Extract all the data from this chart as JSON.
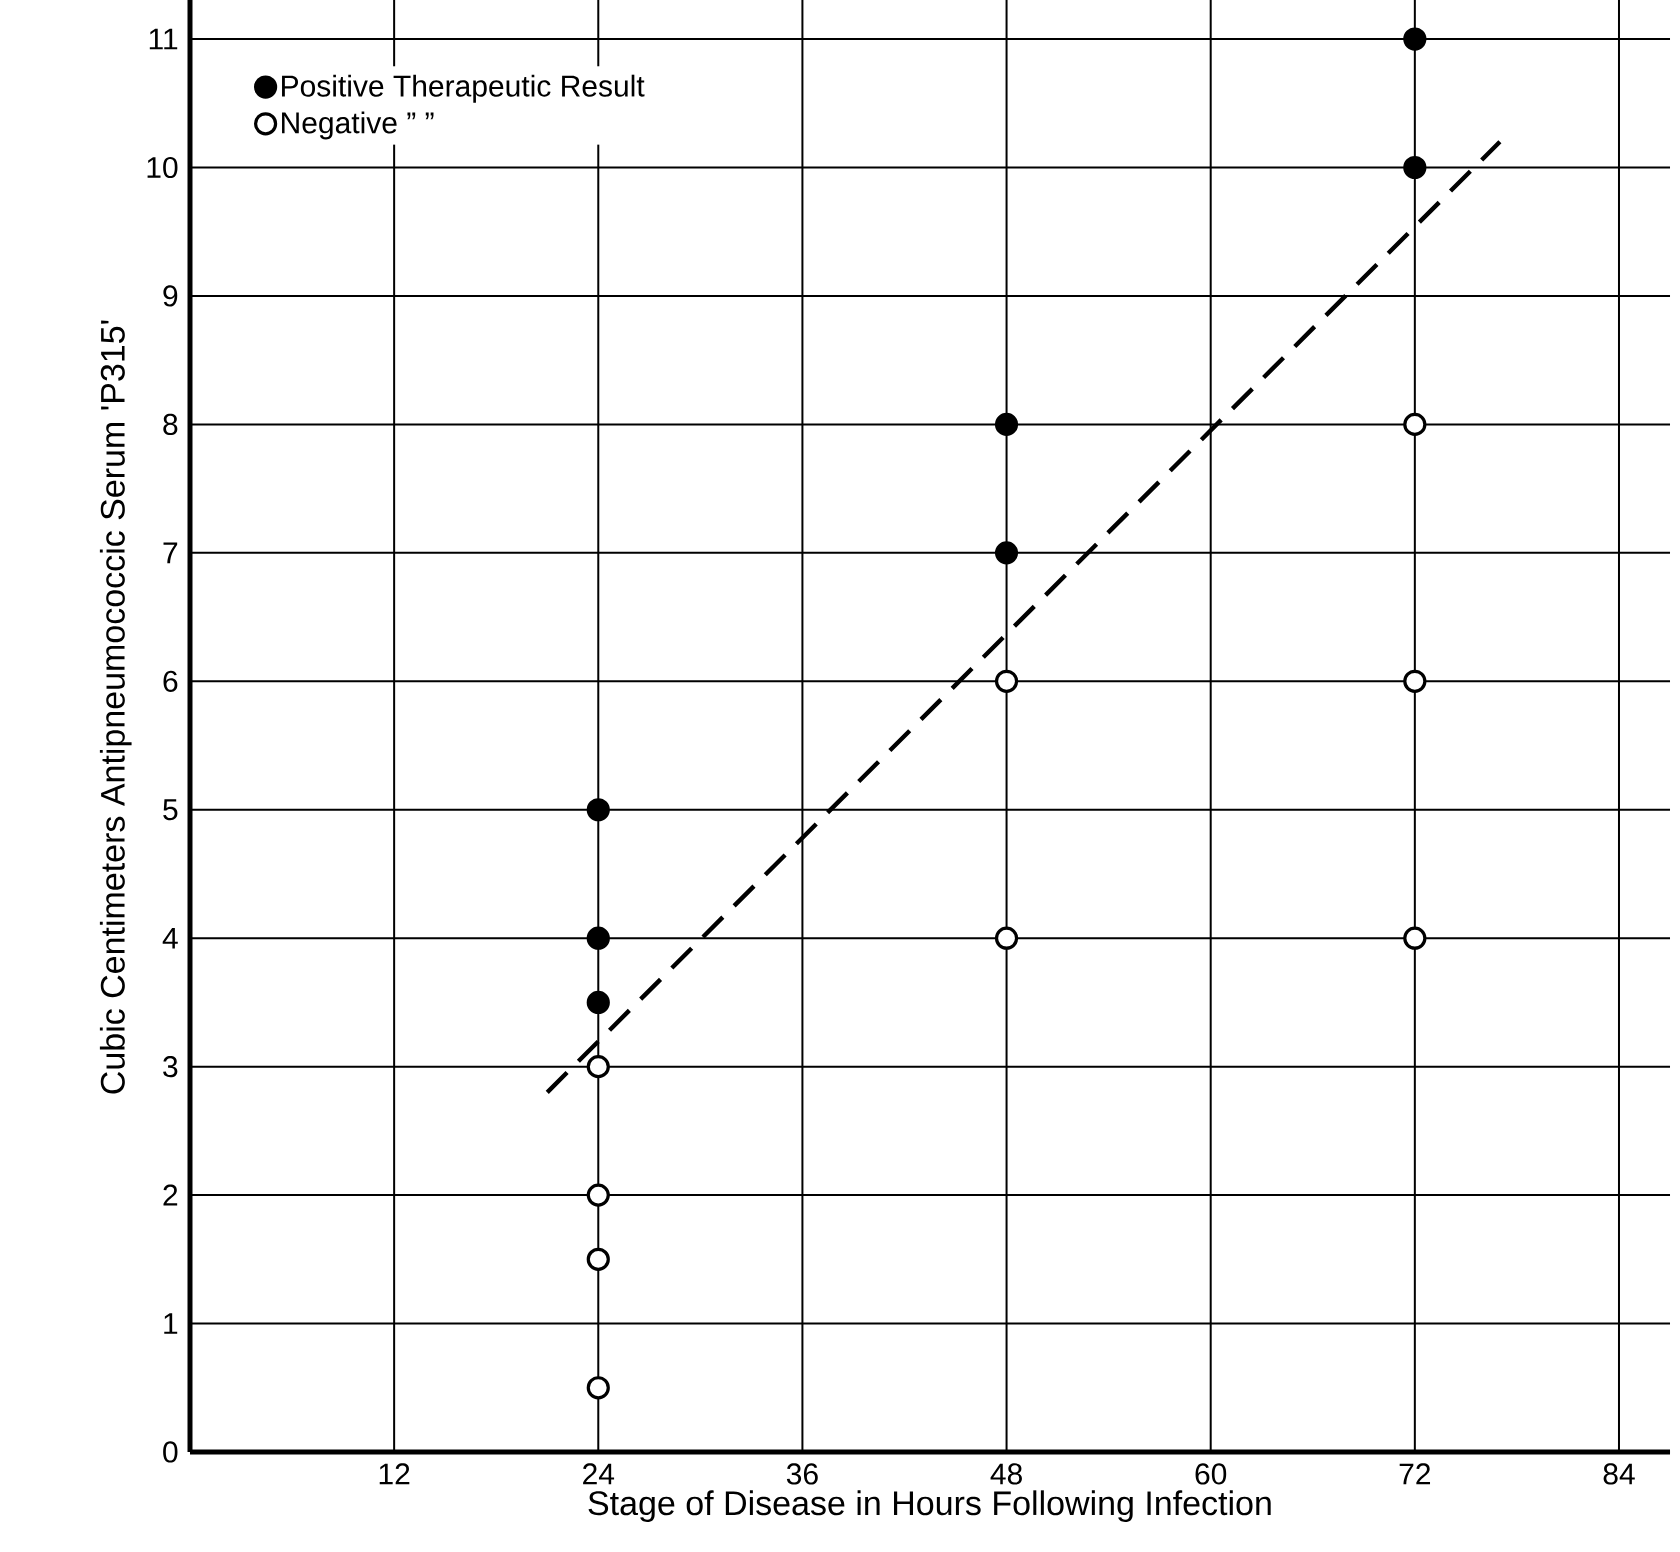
{
  "chart_data": {
    "type": "scatter",
    "xlabel": "Stage of Disease in Hours Following Infection",
    "ylabel": "Cubic Centimeters Antipneumococcic Serum 'P315'",
    "xlim": [
      0,
      87
    ],
    "ylim": [
      0,
      11.6
    ],
    "xticks": [
      12,
      24,
      36,
      48,
      60,
      72,
      84
    ],
    "yticks": [
      0,
      1,
      2,
      3,
      4,
      5,
      6,
      7,
      8,
      9,
      10,
      11
    ],
    "grid": true,
    "legend": "top left",
    "series": [
      {
        "name": "Positive Therapeutic Result",
        "color": "#000000",
        "marker": "circle",
        "x": [
          24,
          24,
          24,
          48,
          48,
          72,
          72
        ],
        "values": [
          5,
          4,
          3.5,
          8,
          7,
          11,
          10
        ]
      },
      {
        "name": "Negative ” ”",
        "color": "#ffffff",
        "marker": "circle",
        "x": [
          24,
          24,
          24,
          24,
          48,
          48,
          72,
          72,
          72
        ],
        "values": [
          3,
          2,
          1.5,
          0.5,
          6,
          4,
          8,
          6,
          4
        ]
      },
      {
        "type": "line",
        "color": "#000000",
        "line_style": "dashed",
        "marker": "none",
        "x": [
          21,
          77
        ],
        "values": [
          2.8,
          10.2
        ]
      }
    ]
  }
}
